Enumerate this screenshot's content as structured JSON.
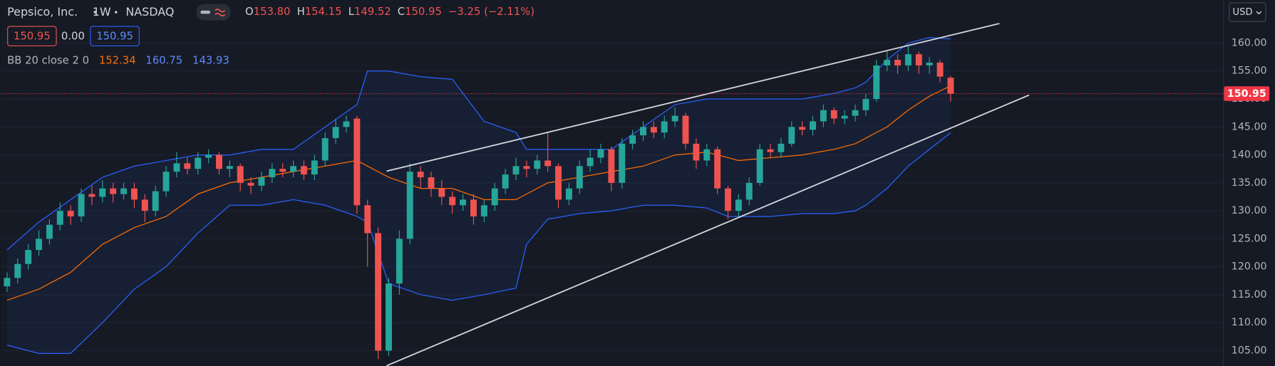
{
  "header": {
    "symbol": "Pepsico, Inc.",
    "interval": "1W",
    "exchange": "NASDAQ",
    "ohlc": [
      {
        "key": "O",
        "value": "153.80"
      },
      {
        "key": "H",
        "value": "154.15"
      },
      {
        "key": "L",
        "value": "149.52"
      },
      {
        "key": "C",
        "value": "150.95"
      }
    ],
    "change": "−3.25 (−2.11%)",
    "badges": [
      "150.95",
      "0.00",
      "150.95"
    ],
    "indicator": {
      "name": "BB 20 close 2 0",
      "values": [
        "152.34",
        "160.75",
        "143.93"
      ]
    },
    "currency": "USD"
  },
  "chart_data": {
    "type": "candlestick",
    "open": [
      116.5,
      118,
      120.5,
      123,
      125,
      127.5,
      130,
      129,
      133,
      132.5,
      134,
      133,
      134,
      132,
      130,
      133.5,
      137,
      138.5,
      137.5,
      139.5,
      140,
      137.5,
      138,
      135,
      134.5,
      136,
      137.5,
      137,
      138,
      136.5,
      139,
      143,
      145,
      146.5,
      131,
      126,
      105,
      117,
      125,
      137,
      136,
      134,
      132.5,
      131,
      132,
      129,
      131,
      134,
      136.5,
      138,
      137.5,
      139,
      138,
      132,
      134,
      138,
      139.5,
      141,
      135,
      142,
      143.5,
      145,
      144,
      146,
      147,
      142,
      139,
      141,
      134,
      130,
      132,
      135,
      141,
      140.5,
      142,
      145,
      144.5,
      146,
      148,
      146.5,
      147,
      148,
      150,
      156,
      157,
      156,
      158,
      156,
      156.5,
      153.8
    ],
    "high": [
      119,
      121.5,
      124,
      126.5,
      128.5,
      131.5,
      131,
      134,
      134.5,
      135.5,
      135,
      135,
      135,
      133,
      134.5,
      138,
      140.5,
      139.5,
      140.5,
      141,
      140.5,
      139,
      138.5,
      136,
      137,
      138.5,
      138.5,
      139,
      139,
      140,
      144,
      146.5,
      147,
      147,
      132,
      127,
      118,
      126.5,
      138.5,
      138,
      137,
      135.5,
      133.5,
      133,
      133,
      132,
      135,
      137.5,
      139.5,
      139,
      140,
      144,
      138.5,
      135,
      139,
      141,
      142,
      141.5,
      143,
      144.5,
      146,
      146,
      147,
      148.5,
      147.5,
      143,
      142,
      141.5,
      134.5,
      133,
      136,
      142,
      142,
      143,
      146,
      146,
      147,
      149,
      148.5,
      148,
      149,
      151,
      157,
      158.5,
      158,
      159.5,
      158.5,
      157.5,
      157,
      154.15
    ],
    "low": [
      115.5,
      117,
      119.5,
      122,
      124,
      126.5,
      127.5,
      128,
      131,
      131.5,
      131.5,
      132,
      130.5,
      128,
      129,
      132.5,
      136,
      136.5,
      136.5,
      138.5,
      136.5,
      136,
      133.5,
      133,
      133.5,
      135,
      136,
      136,
      135.5,
      135.5,
      138,
      142,
      144,
      129.5,
      120,
      103.5,
      104,
      115,
      124,
      134,
      132.5,
      131,
      129.5,
      130,
      127.5,
      128,
      130,
      133,
      135.5,
      136,
      136.5,
      137,
      130.5,
      131,
      133,
      137,
      138.5,
      133.5,
      134,
      141,
      142.5,
      143,
      143,
      145,
      141,
      137.5,
      138,
      133,
      128.5,
      129,
      131,
      134.5,
      139.5,
      139.5,
      141.5,
      143.5,
      143.5,
      145,
      145.5,
      145.5,
      146,
      147,
      149.5,
      155,
      154.5,
      155,
      154.5,
      154.5,
      153,
      149.52
    ],
    "close": [
      118,
      120.5,
      123,
      125,
      127.5,
      130,
      129,
      133,
      132.5,
      134,
      133,
      134,
      132,
      130,
      133.5,
      137,
      138.5,
      137.5,
      139.5,
      140,
      137.5,
      138,
      135,
      134.5,
      136,
      137.5,
      137,
      138,
      136.5,
      139,
      143,
      145,
      146,
      131,
      126,
      105,
      117,
      125,
      137,
      136,
      134,
      132.5,
      131,
      132,
      129,
      131,
      134,
      136.5,
      138,
      137.5,
      139,
      138,
      132,
      134,
      138,
      139.5,
      141,
      135,
      142,
      143.5,
      145,
      144,
      146,
      147,
      142,
      139,
      141,
      134,
      130,
      132,
      135,
      141,
      140.5,
      142,
      145,
      144.5,
      146,
      148,
      146.5,
      147,
      148,
      150,
      156,
      157,
      156,
      158,
      156,
      156.5,
      154,
      150.95
    ],
    "up_color": "#26a69a",
    "down_color": "#ef5350",
    "xlim": [
      -0.6,
      114.7
    ],
    "ylim": [
      102.25,
      167.7
    ],
    "yticks": [
      {
        "value": 105,
        "label": "105.00"
      },
      {
        "value": 110,
        "label": "110.00"
      },
      {
        "value": 115,
        "label": "115.00"
      },
      {
        "value": 120,
        "label": "120.00"
      },
      {
        "value": 125,
        "label": "125.00"
      },
      {
        "value": 130,
        "label": "130.00"
      },
      {
        "value": 135,
        "label": "135.00"
      },
      {
        "value": 140,
        "label": "140.00"
      },
      {
        "value": 145,
        "label": "145.00"
      },
      {
        "value": 150,
        "label": "150.00"
      },
      {
        "value": 155,
        "label": "155.00"
      },
      {
        "value": 160,
        "label": "160.00"
      }
    ],
    "grid": true,
    "last_price_label": "150.95",
    "last_price_color": "#f23645",
    "bands": {
      "x": [
        0,
        3,
        6,
        9,
        12,
        15,
        18,
        21,
        24,
        27,
        30,
        33,
        34,
        36,
        39,
        42,
        45,
        48,
        49,
        51,
        54,
        57,
        60,
        63,
        66,
        68,
        69,
        72,
        75,
        78,
        80,
        81,
        83,
        85,
        87,
        89
      ],
      "fill": "#2962ff",
      "series": [
        {
          "color": "#2962ff",
          "values": [
            123,
            128,
            132,
            136,
            138,
            139,
            140,
            140,
            141,
            141,
            145,
            149,
            155,
            155,
            154,
            153.5,
            146,
            144,
            141,
            141,
            141,
            141,
            145,
            149,
            150,
            150,
            150,
            150,
            150,
            151,
            152,
            153,
            157,
            160,
            161,
            160.75
          ]
        },
        {
          "color": "#ff6d00",
          "values": [
            114,
            116,
            119,
            124,
            127,
            129,
            133,
            135,
            136,
            137,
            138,
            139,
            138,
            136,
            134,
            134,
            132,
            132,
            133,
            135,
            136,
            137,
            138,
            140,
            140.5,
            139.5,
            139,
            139.5,
            140,
            141,
            142,
            143,
            145,
            148,
            150.5,
            152.34
          ]
        },
        {
          "color": "#2962ff",
          "values": [
            106,
            104.5,
            104.5,
            110,
            116,
            120,
            126,
            131,
            131,
            132,
            131,
            129,
            128,
            117,
            115,
            114,
            115,
            116.2,
            124,
            128.5,
            129.5,
            130,
            131,
            131,
            130.5,
            129,
            129,
            129,
            129.5,
            129.5,
            130,
            131,
            134,
            138,
            141,
            143.93
          ]
        }
      ]
    },
    "trend_lines": {
      "color": "#d1d4dc",
      "lines": [
        {
          "x": [
            35.8,
            93.6
          ],
          "y": [
            137.1,
            163.5
          ]
        },
        {
          "x": [
            35.8,
            96.4
          ],
          "y": [
            102.3,
            150.7
          ]
        }
      ]
    }
  }
}
